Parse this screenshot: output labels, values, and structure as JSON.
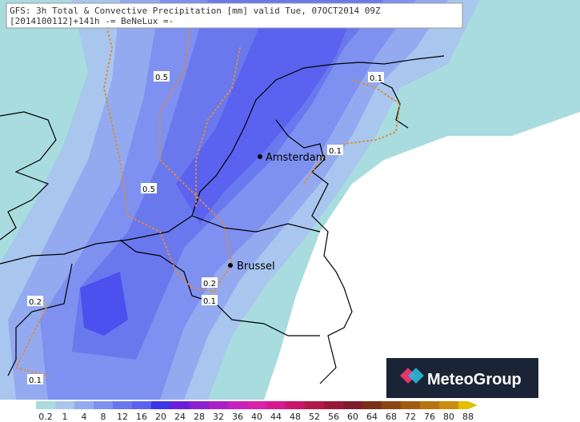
{
  "header": {
    "line1": "GFS: 3h Total & Convective Precipitation [mm] valid Tue, 07OCT2014 09Z",
    "line2": "[2014100112]+141h -= BeNeLux =-"
  },
  "places": [
    {
      "label": "Amsterdam"
    },
    {
      "label": "Brussel"
    }
  ],
  "contour_labels": [
    "0.5",
    "0.5",
    "0.1",
    "0.1",
    "0.2",
    "0.1",
    "0.2",
    "0.1"
  ],
  "legend": {
    "labels": [
      "0.2",
      "1",
      "4",
      "8",
      "12",
      "16",
      "20",
      "24",
      "28",
      "32",
      "36",
      "40",
      "44",
      "48",
      "52",
      "56",
      "60",
      "64",
      "68",
      "72",
      "76",
      "80",
      "88"
    ],
    "colors": [
      "#a8dcdf",
      "#a9c6ee",
      "#93aaf0",
      "#7e90f0",
      "#6a78ee",
      "#5a62ef",
      "#3e34ea",
      "#6a20da",
      "#8a20d2",
      "#a820c8",
      "#c820c0",
      "#d820a8",
      "#d8188c",
      "#c8186a",
      "#b01848",
      "#981838",
      "#801c2c",
      "#7a3018",
      "#8c4614",
      "#a25c10",
      "#b87210",
      "#cc8c10",
      "#e0c000"
    ]
  },
  "logo": {
    "text": "MeteoGroup"
  }
}
